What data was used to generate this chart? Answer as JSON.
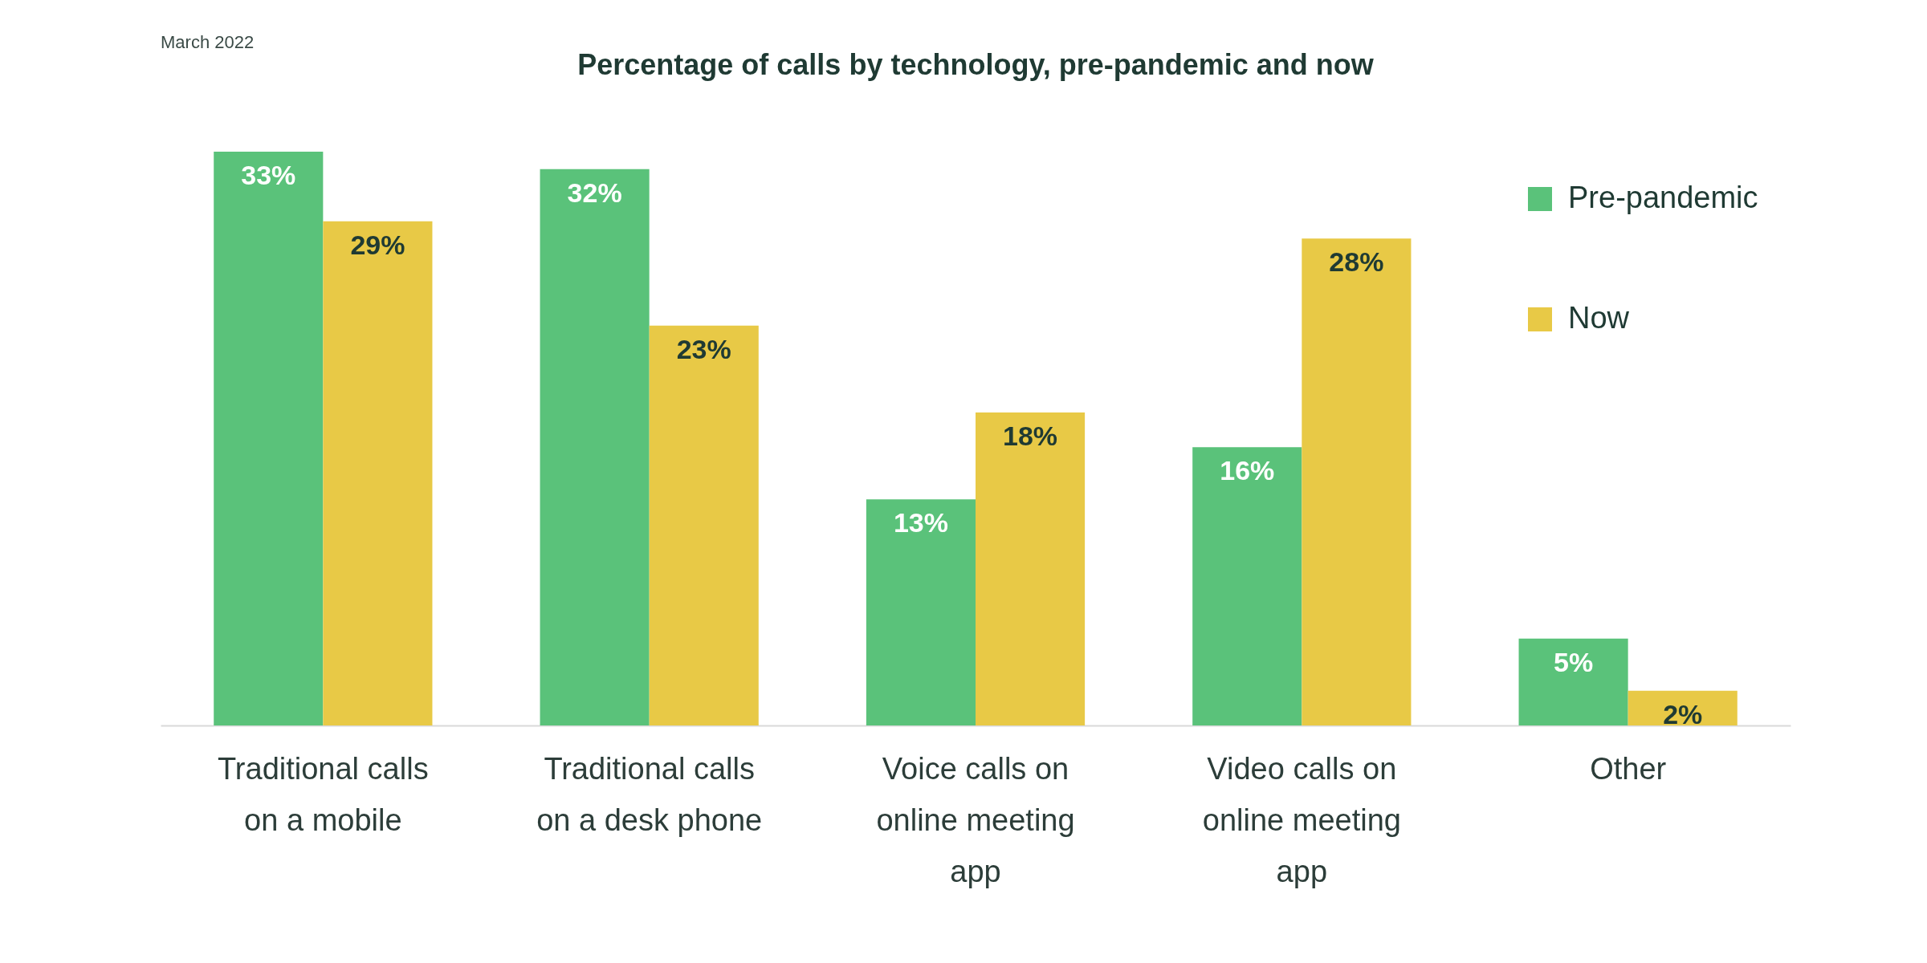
{
  "chart_data": {
    "type": "bar",
    "title": "Percentage of calls by technology, pre-pandemic and now",
    "annotations": [
      "March 2022"
    ],
    "categories": [
      "Traditional calls on a mobile",
      "Traditional calls on a desk phone",
      "Voice calls on online meeting app",
      "Video calls on online meeting app",
      "Other"
    ],
    "series": [
      {
        "name": "Pre-pandemic",
        "color": "#5ac27a",
        "values": [
          33,
          32,
          13,
          16,
          5
        ],
        "value_labels": [
          "33%",
          "32%",
          "13%",
          "16%",
          "5%"
        ]
      },
      {
        "name": "Now",
        "color": "#e8c946",
        "values": [
          29,
          23,
          18,
          28,
          2
        ],
        "value_labels": [
          "29%",
          "23%",
          "18%",
          "28%",
          "2%"
        ]
      }
    ],
    "legend": "top right"
  }
}
